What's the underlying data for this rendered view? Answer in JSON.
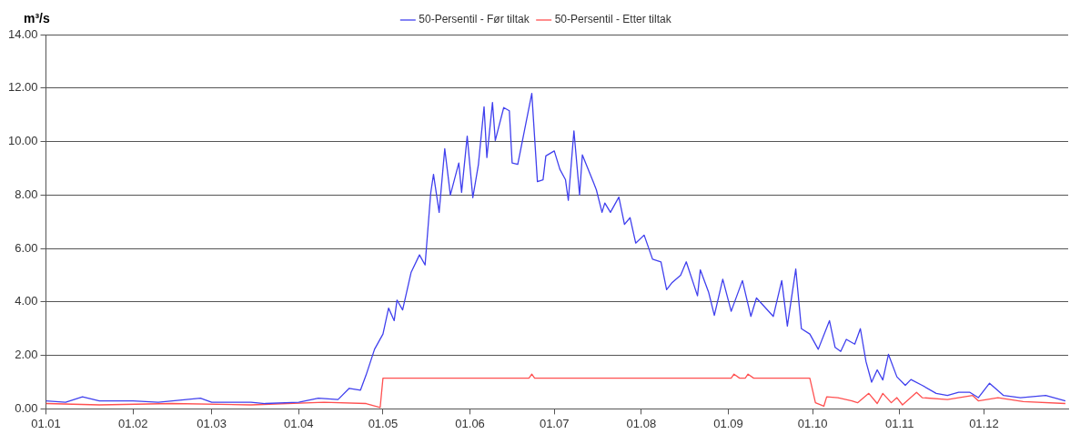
{
  "chart_data": {
    "type": "line",
    "ylabel": "m³/s",
    "legend": "top",
    "grid": "y",
    "marker": "none",
    "line_style": "solid",
    "xlim": [
      "--01-01",
      "--12-31"
    ],
    "xticks": [
      {
        "value": "--01-01",
        "label": "01.01"
      },
      {
        "value": "--02-01",
        "label": "01.02"
      },
      {
        "value": "--03-01",
        "label": "01.03"
      },
      {
        "value": "--04-01",
        "label": "01.04"
      },
      {
        "value": "--05-01",
        "label": "01.05"
      },
      {
        "value": "--06-01",
        "label": "01.06"
      },
      {
        "value": "--07-01",
        "label": "01.07"
      },
      {
        "value": "--08-01",
        "label": "01.08"
      },
      {
        "value": "--09-01",
        "label": "01.09"
      },
      {
        "value": "--10-01",
        "label": "01.10"
      },
      {
        "value": "--11-01",
        "label": "01.11"
      },
      {
        "value": "--12-01",
        "label": "01.12"
      }
    ],
    "ylim": [
      0,
      14
    ],
    "yticks": [
      {
        "value": 0,
        "label": "0.00"
      },
      {
        "value": 2,
        "label": "2.00"
      },
      {
        "value": 4,
        "label": "4.00"
      },
      {
        "value": 6,
        "label": "6.00"
      },
      {
        "value": 8,
        "label": "8.00"
      },
      {
        "value": 10,
        "label": "10.00"
      },
      {
        "value": 12,
        "label": "12.00"
      },
      {
        "value": 14,
        "label": "14.00"
      }
    ],
    "series": [
      {
        "name": "50-Persentil - Før tiltak",
        "color": "#4040ee",
        "x": [
          "--01-01",
          "--01-08",
          "--01-14",
          "--01-20",
          "--02-01",
          "--02-10",
          "--02-25",
          "--03-01",
          "--03-15",
          "--03-20",
          "--04-01",
          "--04-08",
          "--04-15",
          "--04-19",
          "--04-23",
          "--04-25",
          "--04-28",
          "--05-01",
          "--05-03",
          "--05-05",
          "--05-06",
          "--05-08",
          "--05-11",
          "--05-14",
          "--05-16",
          "--05-18",
          "--05-19",
          "--05-21",
          "--05-23",
          "--05-25",
          "--05-28",
          "--05-29",
          "--05-31",
          "--06-02",
          "--06-04",
          "--06-06",
          "--06-07",
          "--06-09",
          "--06-10",
          "--06-13",
          "--06-15",
          "--06-16",
          "--06-18",
          "--06-23",
          "--06-25",
          "--06-27",
          "--06-28",
          "--07-01",
          "--07-03",
          "--07-05",
          "--07-06",
          "--07-08",
          "--07-10",
          "--07-11",
          "--07-15",
          "--07-16",
          "--07-18",
          "--07-19",
          "--07-21",
          "--07-24",
          "--07-26",
          "--07-28",
          "--07-30",
          "--08-02",
          "--08-05",
          "--08-08",
          "--08-10",
          "--08-12",
          "--08-15",
          "--08-17",
          "--08-21",
          "--08-22",
          "--08-25",
          "--08-27",
          "--08-30",
          "--09-02",
          "--09-06",
          "--09-09",
          "--09-11",
          "--09-17",
          "--09-20",
          "--09-22",
          "--09-25",
          "--09-27",
          "--09-30",
          "--10-03",
          "--10-07",
          "--10-09",
          "--10-11",
          "--10-13",
          "--10-16",
          "--10-18",
          "--10-20",
          "--10-22",
          "--10-24",
          "--10-26",
          "--10-28",
          "--10-31",
          "--11-03",
          "--11-05",
          "--11-09",
          "--11-14",
          "--11-18",
          "--11-22",
          "--11-26",
          "--11-29",
          "--12-03",
          "--12-08",
          "--12-14",
          "--12-23",
          "--12-30"
        ],
        "values": [
          0.3,
          0.25,
          0.45,
          0.3,
          0.3,
          0.25,
          0.4,
          0.25,
          0.25,
          0.2,
          0.25,
          0.4,
          0.35,
          0.77,
          0.7,
          1.27,
          2.23,
          2.8,
          3.77,
          3.3,
          4.07,
          3.7,
          5.1,
          5.76,
          5.38,
          8.07,
          8.77,
          7.35,
          9.73,
          8.0,
          9.2,
          8.1,
          10.2,
          7.9,
          9.15,
          11.3,
          9.4,
          11.46,
          10.04,
          11.27,
          11.15,
          9.2,
          9.15,
          11.8,
          8.5,
          8.57,
          9.46,
          9.65,
          8.96,
          8.57,
          7.8,
          10.4,
          8.0,
          9.5,
          8.46,
          8.19,
          7.35,
          7.7,
          7.35,
          7.92,
          6.9,
          7.15,
          6.2,
          6.5,
          5.6,
          5.5,
          4.46,
          4.73,
          5.0,
          5.5,
          4.23,
          5.2,
          4.35,
          3.5,
          4.85,
          3.65,
          4.8,
          3.46,
          4.15,
          3.46,
          4.8,
          3.1,
          5.23,
          3.0,
          2.8,
          2.23,
          3.3,
          2.3,
          2.15,
          2.6,
          2.42,
          3.0,
          1.77,
          1.0,
          1.46,
          1.08,
          2.04,
          1.2,
          0.88,
          1.1,
          0.88,
          0.58,
          0.5,
          0.62,
          0.62,
          0.42,
          0.96,
          0.5,
          0.42,
          0.5,
          0.3
        ]
      },
      {
        "name": "50-Persentil - Etter tiltak",
        "color": "#ff5050",
        "x": [
          "--01-01",
          "--01-20",
          "--02-15",
          "--03-15",
          "--04-10",
          "--04-25",
          "--04-30",
          "--05-01",
          "--06-22",
          "--06-23",
          "--06-24",
          "--09-02",
          "--09-03",
          "--09-05",
          "--09-07",
          "--09-08",
          "--09-10",
          "--09-30",
          "--10-02",
          "--10-05",
          "--10-06",
          "--10-10",
          "--10-15",
          "--10-17",
          "--10-21",
          "--10-24",
          "--10-26",
          "--10-29",
          "--10-31",
          "--11-02",
          "--11-07",
          "--11-09",
          "--11-18",
          "--11-27",
          "--11-29",
          "--12-06",
          "--12-15",
          "--12-30"
        ],
        "values": [
          0.2,
          0.15,
          0.2,
          0.15,
          0.25,
          0.2,
          0.05,
          1.15,
          1.15,
          1.3,
          1.15,
          1.15,
          1.3,
          1.15,
          1.15,
          1.3,
          1.15,
          1.15,
          0.23,
          0.1,
          0.45,
          0.42,
          0.3,
          0.23,
          0.58,
          0.2,
          0.58,
          0.23,
          0.42,
          0.15,
          0.62,
          0.42,
          0.35,
          0.5,
          0.3,
          0.42,
          0.27,
          0.2
        ]
      }
    ]
  }
}
